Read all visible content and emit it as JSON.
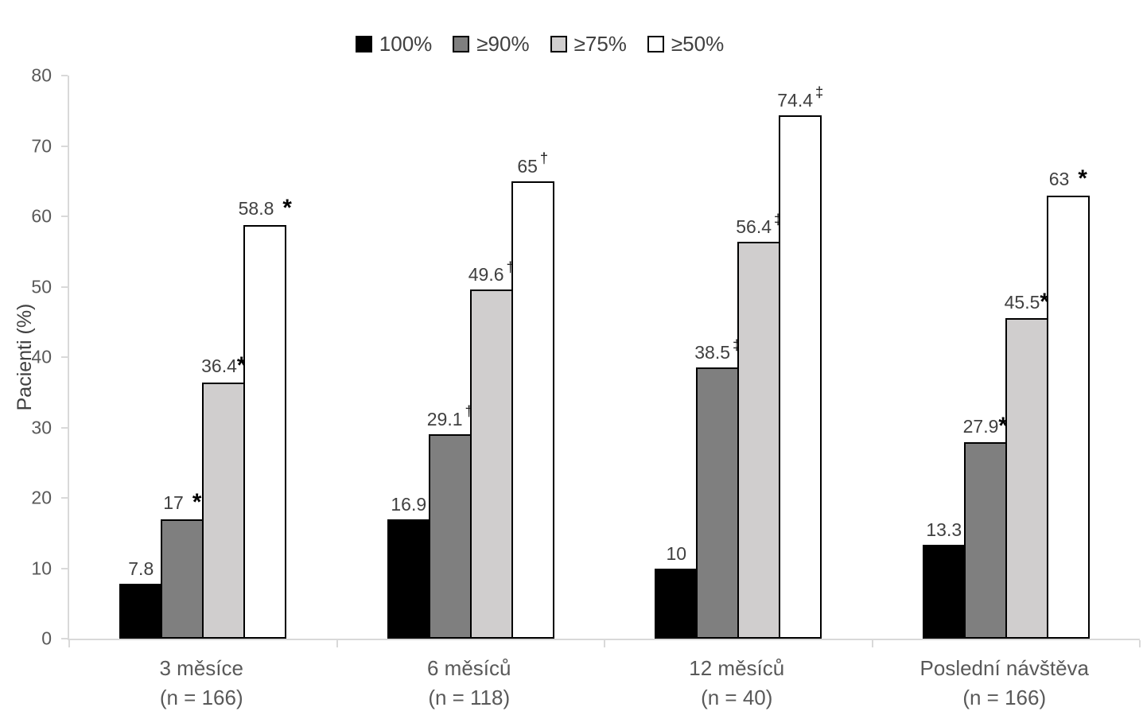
{
  "chart_data": {
    "type": "bar",
    "title": "",
    "ylabel": "Pacienti (%)",
    "xlabel": "",
    "ylim": [
      0,
      80
    ],
    "yticks": [
      0,
      10,
      20,
      30,
      40,
      50,
      60,
      70,
      80
    ],
    "grid": false,
    "legend_position": "top-center",
    "categories": [
      {
        "label": "3 měsíce",
        "sublabel": "(n = 166)"
      },
      {
        "label": "6 měsíců",
        "sublabel": "(n = 118)"
      },
      {
        "label": "12 měsíců",
        "sublabel": "(n = 40)"
      },
      {
        "label": "Poslední návštěva",
        "sublabel": "(n = 166)"
      }
    ],
    "series": [
      {
        "name": "100%",
        "color": "#000000",
        "border_color": "#000000",
        "values": [
          7.8,
          16.9,
          10,
          13.3
        ],
        "data_labels": [
          "7.8",
          "16.9",
          "10",
          "13.3"
        ],
        "symbols": [
          "",
          "",
          "",
          ""
        ]
      },
      {
        "name": "≥90%",
        "color": "#7f7f7f",
        "border_color": "#000000",
        "values": [
          17,
          29.1,
          38.5,
          27.9
        ],
        "data_labels": [
          "17",
          "29.1",
          "38.5",
          "27.9"
        ],
        "symbols": [
          " *",
          "†",
          "‡",
          "*"
        ]
      },
      {
        "name": "≥75%",
        "color": "#d0cece",
        "border_color": "#000000",
        "values": [
          36.4,
          49.6,
          56.4,
          45.5
        ],
        "data_labels": [
          "36.4",
          "49.6",
          "56.4",
          "45.5"
        ],
        "symbols": [
          "*",
          "†",
          "‡",
          "*"
        ]
      },
      {
        "name": "≥50%",
        "color": "#ffffff",
        "border_color": "#000000",
        "values": [
          58.8,
          65,
          74.4,
          63
        ],
        "data_labels": [
          "58.8",
          "65",
          "74.4",
          "63"
        ],
        "symbols": [
          " *",
          "†",
          "‡",
          " *"
        ]
      }
    ],
    "axis_color": "#d9d9d9",
    "tick_label_color": "#595959",
    "data_label_color": "#404040"
  }
}
